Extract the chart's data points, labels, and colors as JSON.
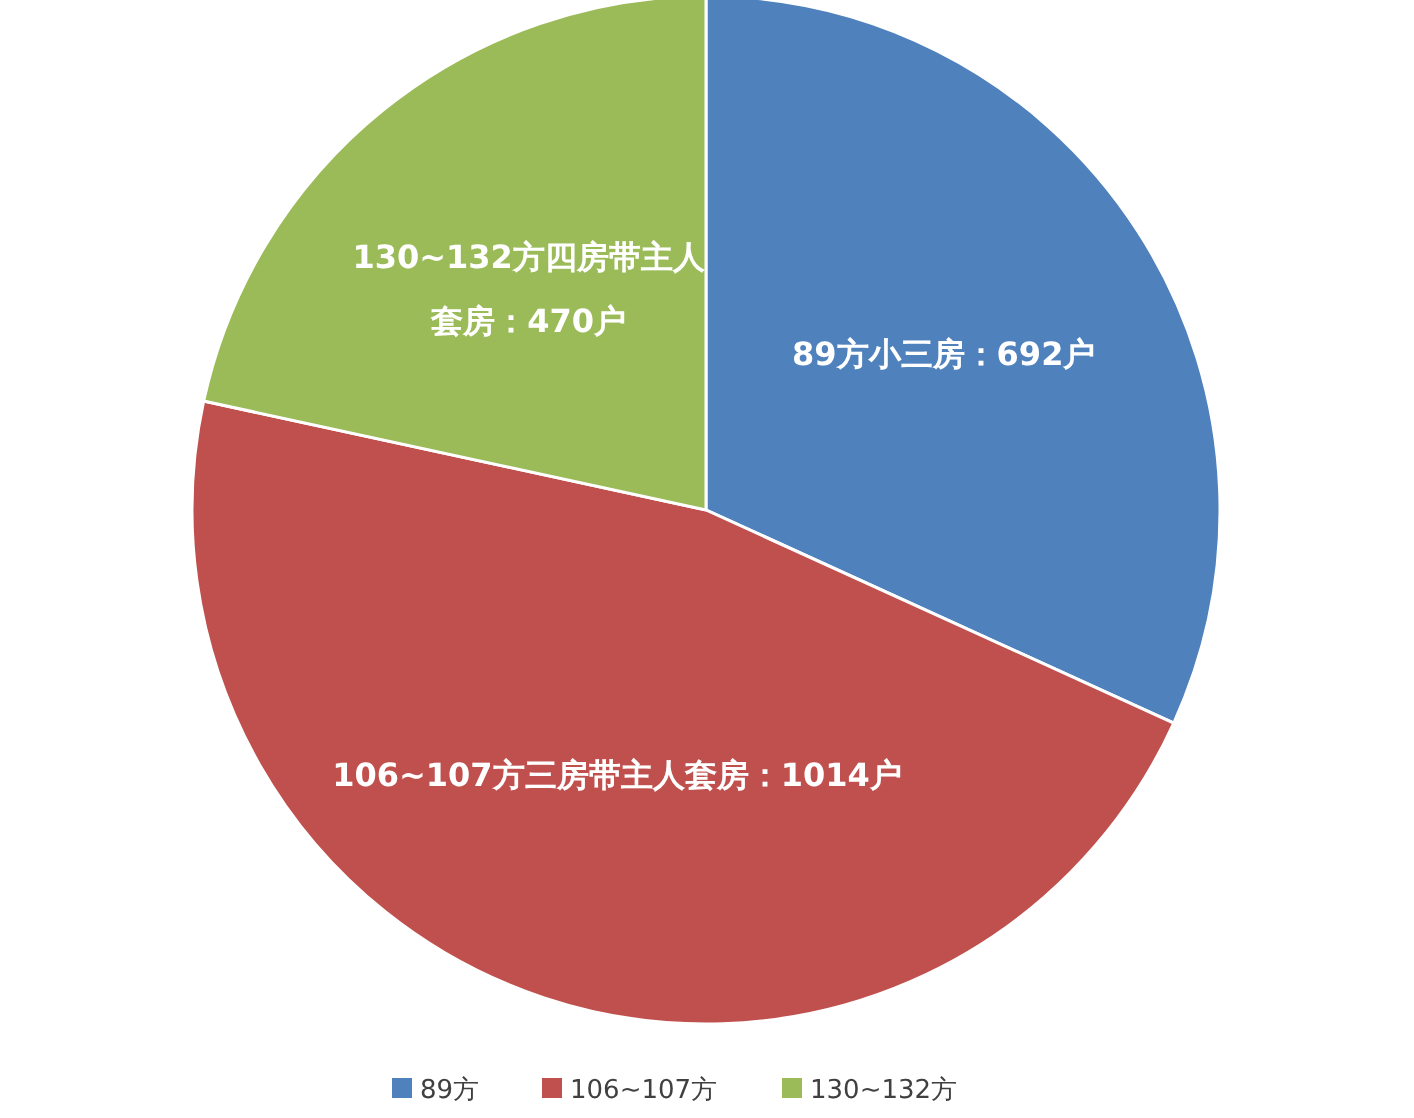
{
  "chart_data": {
    "type": "pie",
    "categories": [
      "89方",
      "106~107方",
      "130~132方"
    ],
    "values": [
      692,
      1014,
      470
    ],
    "colors": [
      "#4f81bd",
      "#c0504d",
      "#9bbb59"
    ],
    "value_labels": [
      "89方小三房：692户",
      "106~107方三房带主人套房：1014户",
      "130~132方四房带主人套房：470户"
    ],
    "legend": "bottom"
  }
}
